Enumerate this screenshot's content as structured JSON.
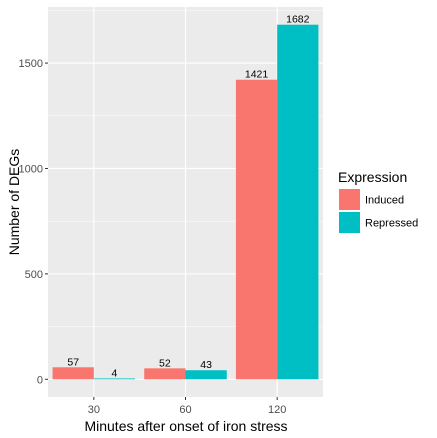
{
  "chart_data": {
    "type": "bar",
    "categories": [
      "30",
      "60",
      "120"
    ],
    "series": [
      {
        "name": "Induced",
        "values": [
          57,
          52,
          1421
        ],
        "color": "#F8766D"
      },
      {
        "name": "Repressed",
        "values": [
          4,
          43,
          1682
        ],
        "color": "#00BFC4"
      }
    ],
    "xlabel": "Minutes after onset of iron stress",
    "ylabel": "Number of DEGs",
    "ylim": [
      -84,
      1766
    ],
    "yticks": [
      0,
      500,
      1000,
      1500
    ],
    "grid": true,
    "legend": {
      "title": "Expression",
      "placement": "right"
    },
    "panel_background": "#EBEBEB",
    "grid_color": "#FFFFFF"
  }
}
